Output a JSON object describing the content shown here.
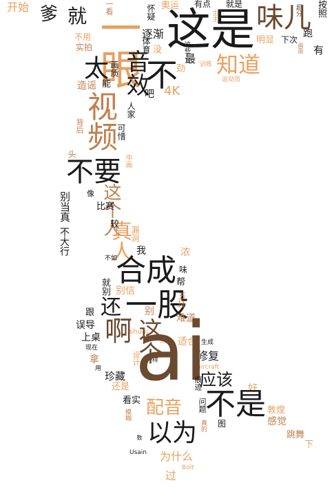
{
  "wordcloud": {
    "palette": {
      "dark": "#1a1a1a",
      "brown": "#6b4a30",
      "tan": "#c08050",
      "orange": "#e8a060",
      "light": "#f2c8a0"
    },
    "words": {
      "ai": "ai",
      "zhe_shi": "这是",
      "yi_yan": "一眼",
      "wei_er": "味儿",
      "jiu": "就",
      "die": "爹",
      "kai_shi": "开始",
      "yi_kan": "一看",
      "ao_yun": "奥运",
      "you_dian": "有点",
      "jiu_shi": "就是",
      "ti_yu": "体育",
      "huai_yi": "怀疑",
      "zhu_zhu": "主主",
      "chao_fen": "超分",
      "an_zhao": "按照",
      "bu_yong": "不用",
      "shi_pai": "实拍",
      "zhu_jian": "逐渐",
      "hua_mian": "画面",
      "ming_xian": "明显",
      "xia_ci": "下次",
      "pao": "跑",
      "you": "有",
      "tai": "太",
      "yin_xiao": "音效",
      "bu": "不",
      "zhi_dao": "知道",
      "zui": "最",
      "mei": "没",
      "jin": "劲",
      "zhe_xie": "这些",
      "xun_lian": "训练",
      "yun_dong_yuan": "运动员",
      "zao_yao": "造谣",
      "neng": "能",
      "hua_zhi": "画质",
      "ba": "吧",
      "k4": "4K",
      "shi_pin": "视频",
      "bei_hou": "背后",
      "ke_xi": "可惜",
      "ren_jia": "人家",
      "tou": "头",
      "zhong_hua": "中画",
      "bu_yao": "不要",
      "bie_dang_zhen": "别当真",
      "xiang": "像",
      "zhe_ge_ren": "这个人",
      "bi_sai": "比赛",
      "zhen_ren": "真人",
      "jiao": "较",
      "lou_dong": "漏洞",
      "bu_da_xing": "不大行",
      "bu_ru": "不如",
      "wo": "我",
      "nong": "浓",
      "he_cheng": "合成",
      "wei": "味",
      "bang": "帮",
      "jiu_bie": "就别",
      "yi_gu": "一股",
      "bie_xin": "别信",
      "wu_huan": "五环",
      "gen": "跟",
      "huan": "还",
      "bie": "别",
      "nan_dao": "难道",
      "wu_dao": "误导",
      "shuai": "shuai",
      "a": "啊",
      "zhe_ge": "这个",
      "shang_zhuo": "上桌",
      "dian": "点",
      "shi_he": "适合",
      "sheng_cheng": "生成",
      "xian_zai": "现在",
      "xiu_fu": "修复",
      "aircraft": "aircraft",
      "na": "拿",
      "yong": "用",
      "she_ji": "设计",
      "yi_yang": "一样",
      "zhen_cang": "珍藏",
      "ying_gai": "应该",
      "hen_ji": "痕迹",
      "hao": "好",
      "hai_shi": "还是",
      "kan_shi": "看实",
      "pei_yin": "配音",
      "bu_shi": "不是",
      "dun_huang": "敦煌",
      "wen_ti": "问题",
      "mo_hu": "模糊",
      "gan_jue": "感觉",
      "tu": "图",
      "yi_wei": "以为",
      "zhen_de": "真的",
      "tiao_wu": "跳舞",
      "xia": "下",
      "shu": "数",
      "usain": "Usain",
      "wei_shen_me": "为什么",
      "bolt": "Bolt",
      "guo": "过"
    }
  }
}
